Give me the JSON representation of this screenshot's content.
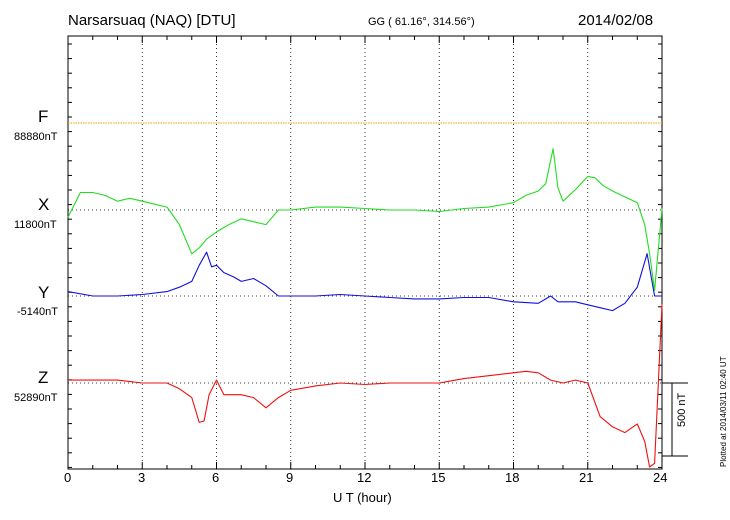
{
  "header": {
    "station": "Narsarsuaq (NAQ)  [DTU]",
    "coords": "GG ( 61.16°, 314.56°)",
    "date": "2014/02/08"
  },
  "channels": [
    {
      "name": "F",
      "base": "88880nT",
      "color": "#f0a000"
    },
    {
      "name": "X",
      "base": "11800nT",
      "color": "#22dd22"
    },
    {
      "name": "Y",
      "base": "-5140nT",
      "color": "#1010dd"
    },
    {
      "name": "Z",
      "base": "52890nT",
      "color": "#ee1111"
    }
  ],
  "scale_bar": {
    "label": "500 nT",
    "value_nT": 500
  },
  "footer_stamp": "Plotted at 2014/03/11 02:40 UT",
  "chart_data": {
    "type": "line",
    "title": "Narsarsuaq (NAQ)  [DTU]",
    "xlabel": "U T (hour)",
    "ylabel": "",
    "xlim": [
      0,
      24
    ],
    "xticks": [
      "0",
      "3",
      "6",
      "9",
      "12",
      "15",
      "18",
      "21",
      "24"
    ],
    "grid": true,
    "units": "nT",
    "series": [
      {
        "name": "F",
        "baseline": "88880nT",
        "x": [
          0,
          24
        ],
        "dev": [
          0,
          0
        ]
      },
      {
        "name": "X",
        "baseline": "11800nT",
        "x": [
          0,
          0.5,
          1,
          1.5,
          2,
          2.5,
          3,
          3.5,
          4,
          4.5,
          5,
          5.3,
          5.6,
          6,
          6.5,
          7,
          7.5,
          8,
          8.5,
          9,
          10,
          11,
          12,
          13,
          14,
          15,
          16,
          17,
          18,
          18.5,
          19,
          19.3,
          19.6,
          19.8,
          20,
          20.5,
          21,
          21.3,
          21.6,
          22,
          22.5,
          23,
          23.3,
          23.5,
          23.7,
          24
        ],
        "dev": [
          -50,
          120,
          120,
          100,
          60,
          80,
          60,
          40,
          20,
          -100,
          -300,
          -260,
          -200,
          -150,
          -100,
          -60,
          -80,
          -100,
          0,
          0,
          20,
          20,
          10,
          0,
          0,
          -10,
          10,
          20,
          50,
          100,
          130,
          180,
          420,
          150,
          60,
          140,
          230,
          220,
          170,
          130,
          90,
          50,
          -100,
          -300,
          -550,
          10
        ]
      },
      {
        "name": "Y",
        "baseline": "-5140nT",
        "x": [
          0,
          1,
          2,
          3,
          4,
          4.5,
          5,
          5.3,
          5.6,
          5.8,
          6,
          6.3,
          6.7,
          7,
          7.5,
          8,
          8.5,
          9,
          10,
          11,
          12,
          13,
          14,
          15,
          16,
          17,
          18,
          19,
          19.5,
          19.8,
          20,
          20.5,
          21,
          21.5,
          22,
          22.5,
          23,
          23.4,
          23.7,
          24
        ],
        "dev": [
          30,
          0,
          0,
          10,
          30,
          60,
          100,
          210,
          300,
          200,
          210,
          160,
          130,
          100,
          120,
          70,
          0,
          0,
          0,
          10,
          0,
          -10,
          -20,
          -20,
          -10,
          -10,
          -40,
          -50,
          0,
          -40,
          -40,
          -40,
          -60,
          -80,
          -100,
          -50,
          60,
          290,
          0,
          0
        ]
      },
      {
        "name": "Z",
        "baseline": "52890nT",
        "x": [
          0,
          1,
          2,
          3,
          4,
          4.5,
          5,
          5.3,
          5.5,
          5.7,
          6,
          6.3,
          7,
          7.5,
          8,
          8.5,
          9,
          10,
          11,
          12,
          13,
          14,
          15,
          16,
          17,
          18,
          18.5,
          19,
          19.5,
          20,
          20.5,
          21,
          21.5,
          22,
          22.5,
          23,
          23.3,
          23.5,
          23.7,
          24
        ],
        "dev": [
          20,
          20,
          20,
          0,
          0,
          -40,
          -100,
          -270,
          -260,
          -80,
          20,
          -80,
          -80,
          -100,
          -170,
          -100,
          -50,
          -20,
          0,
          -10,
          0,
          0,
          0,
          30,
          50,
          70,
          80,
          70,
          20,
          0,
          20,
          0,
          -230,
          -300,
          -340,
          -280,
          -400,
          -600,
          -550,
          540
        ]
      }
    ]
  }
}
